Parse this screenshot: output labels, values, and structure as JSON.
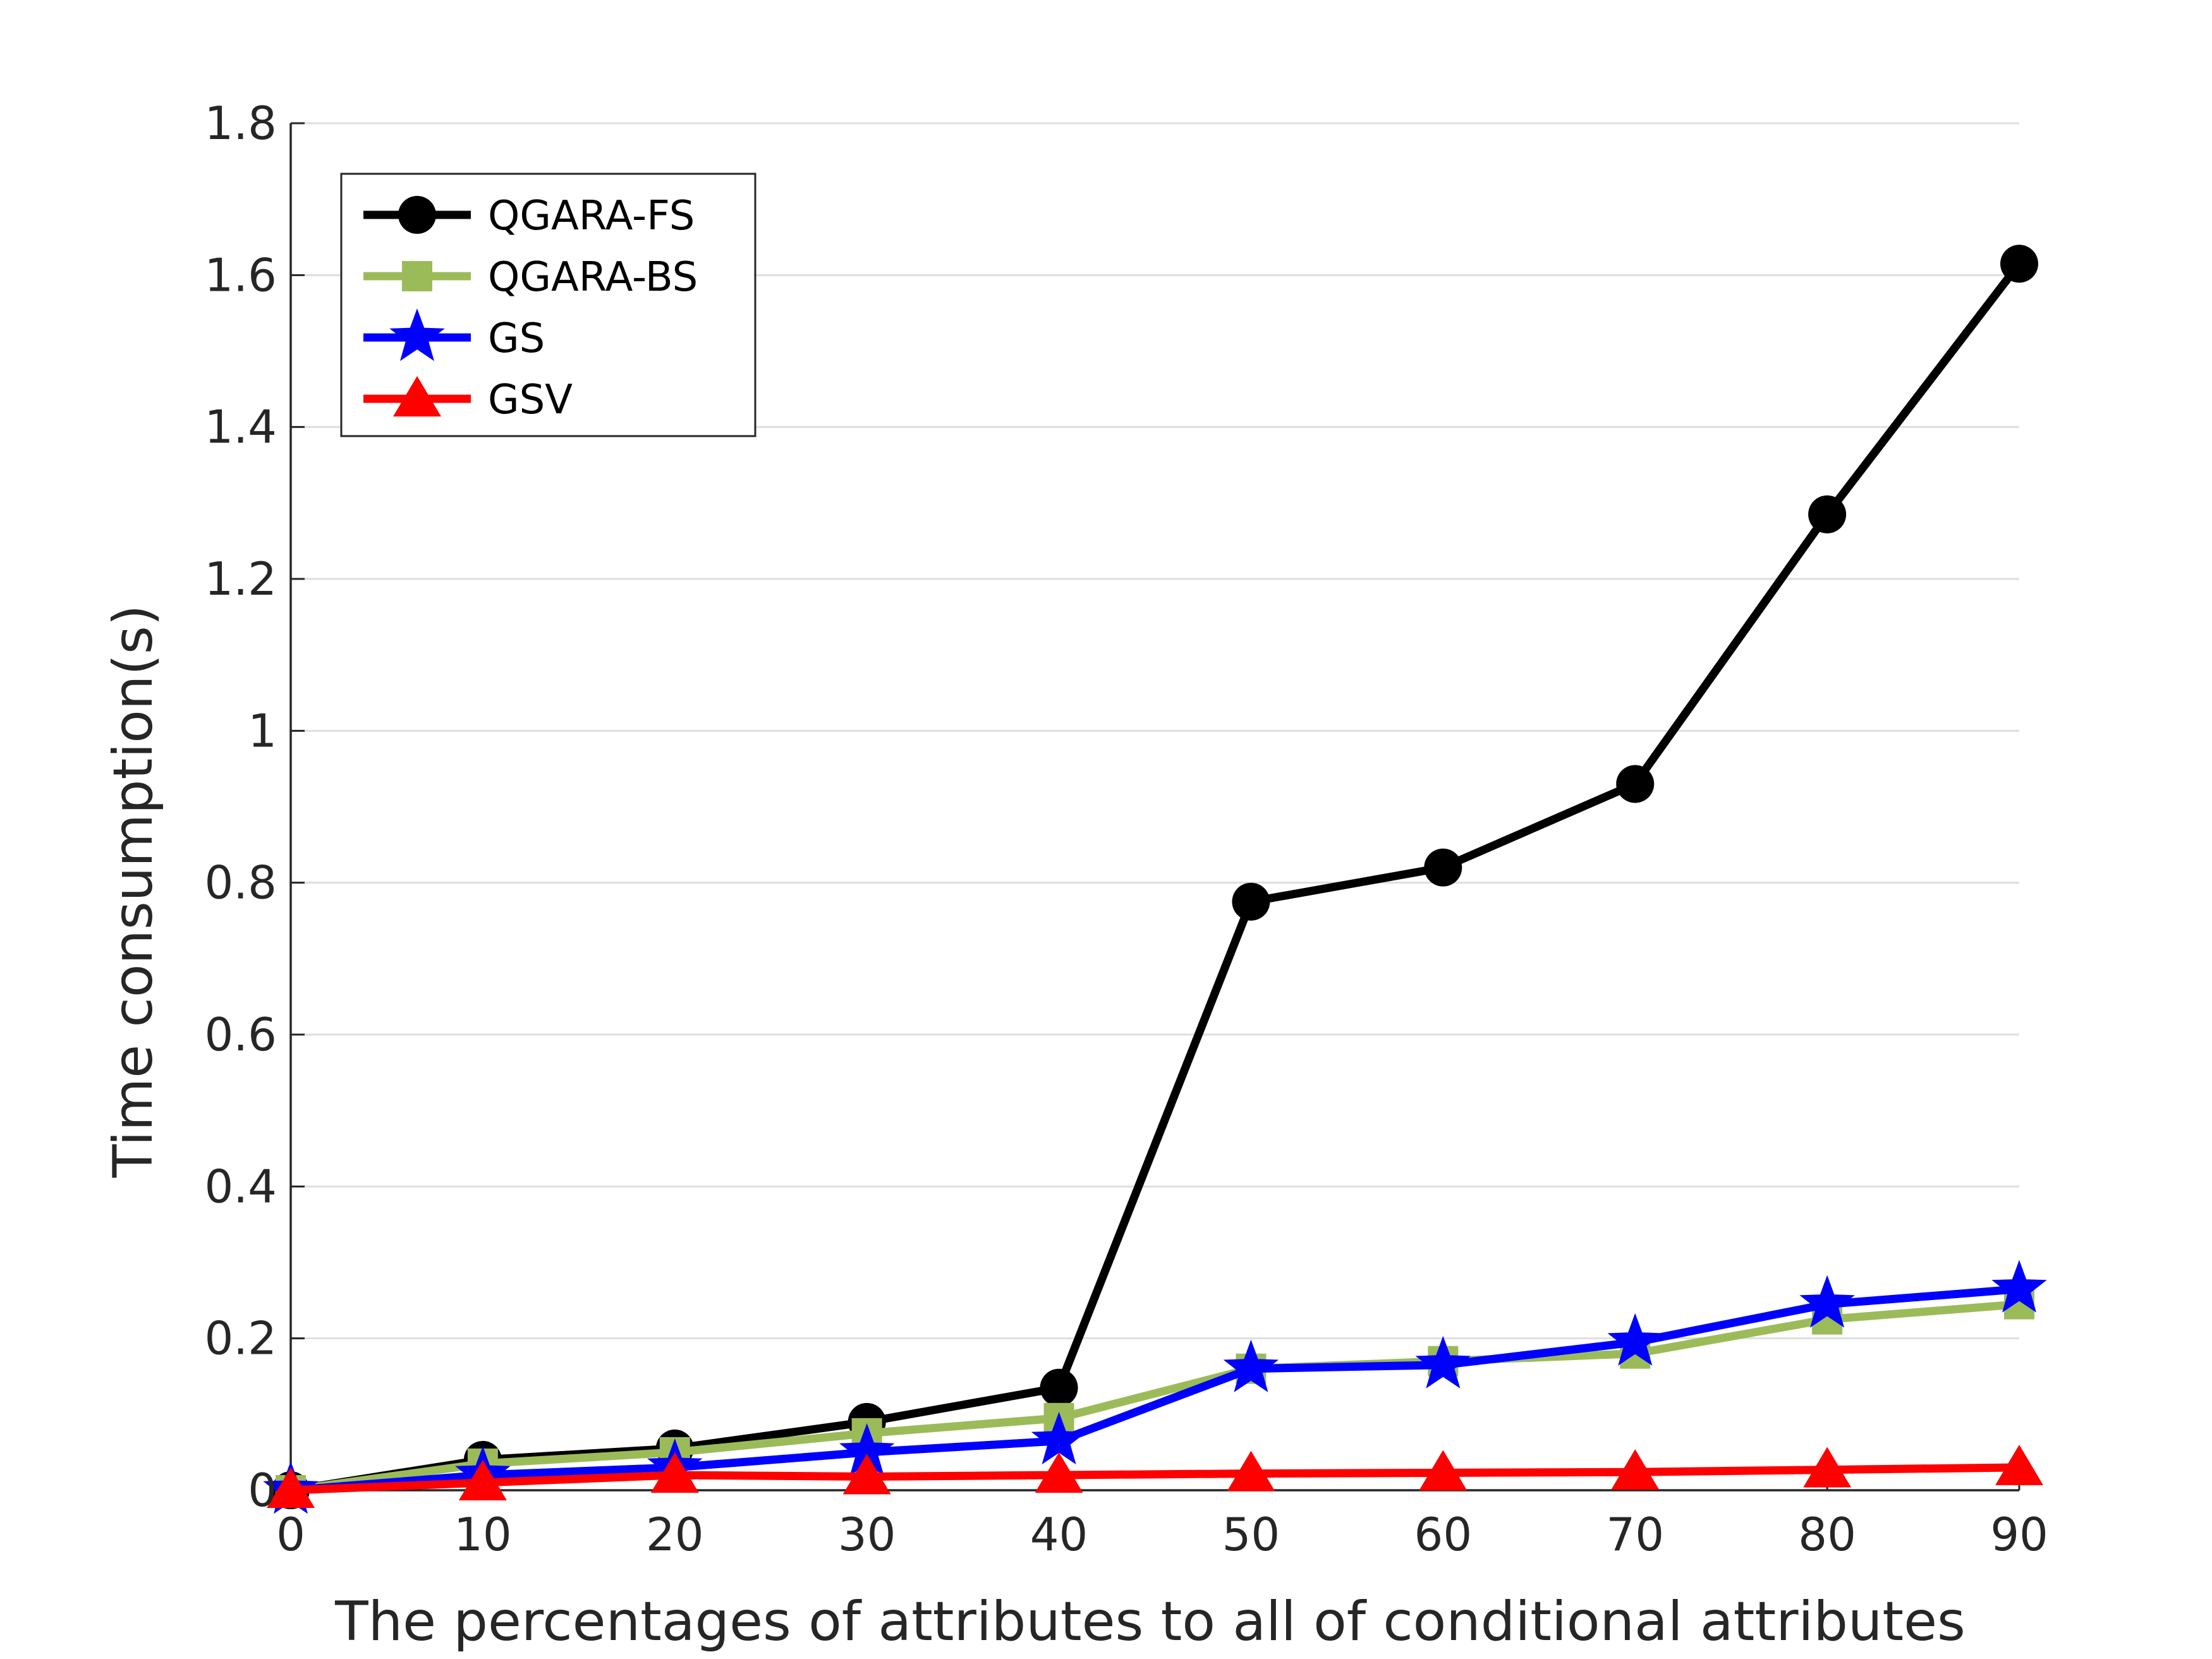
{
  "chart_data": {
    "type": "line",
    "title": "",
    "xlabel": "The percentages of attributes to all of conditional attributes",
    "ylabel": "Time consumption(s)",
    "x": [
      0,
      10,
      20,
      30,
      40,
      50,
      60,
      70,
      80,
      90
    ],
    "xlim": [
      0,
      90
    ],
    "ylim": [
      0,
      1.8
    ],
    "xticks": [
      "0",
      "10",
      "20",
      "30",
      "40",
      "50",
      "60",
      "70",
      "80",
      "90"
    ],
    "yticks": [
      "0",
      "0.2",
      "0.4",
      "0.6",
      "0.8",
      "1",
      "1.2",
      "1.4",
      "1.6",
      "1.8"
    ],
    "grid": "horizontal",
    "legend_position": "top-left",
    "series": [
      {
        "name": "QGARA-FS",
        "color": "#000000",
        "marker": "circle",
        "values": [
          0.0,
          0.04,
          0.055,
          0.09,
          0.135,
          0.775,
          0.82,
          0.93,
          1.285,
          1.615
        ]
      },
      {
        "name": "QGARA-BS",
        "color": "#9BBB59",
        "marker": "square",
        "values": [
          0.0,
          0.035,
          0.05,
          0.075,
          0.095,
          0.16,
          0.17,
          0.18,
          0.225,
          0.245
        ]
      },
      {
        "name": "GS",
        "color": "#0000FF",
        "marker": "star",
        "values": [
          0.0,
          0.02,
          0.03,
          0.05,
          0.065,
          0.16,
          0.165,
          0.195,
          0.245,
          0.265
        ]
      },
      {
        "name": "GSV",
        "color": "#FF0000",
        "marker": "triangle",
        "values": [
          0.0,
          0.01,
          0.02,
          0.018,
          0.02,
          0.022,
          0.023,
          0.024,
          0.027,
          0.03
        ]
      }
    ]
  }
}
